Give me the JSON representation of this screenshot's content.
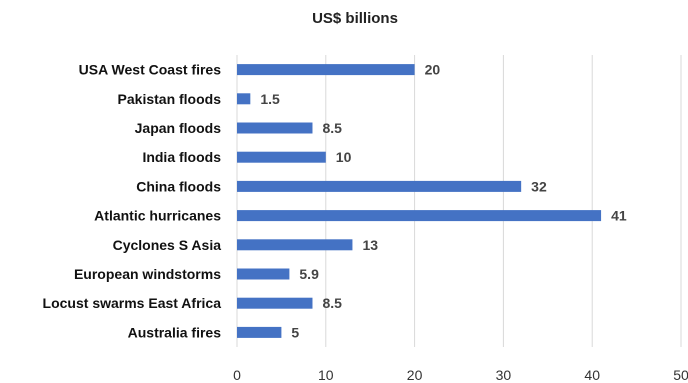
{
  "chart_data": {
    "type": "bar",
    "orientation": "horizontal",
    "title": "US$ billions",
    "xlabel": "",
    "ylabel": "",
    "categories": [
      "USA West Coast fires",
      "Pakistan floods",
      "Japan floods",
      "India floods",
      "China floods",
      "Atlantic hurricanes",
      "Cyclones S Asia",
      "European windstorms",
      "Locust swarms East Africa",
      "Australia fires"
    ],
    "values": [
      20,
      1.5,
      8.5,
      10,
      32,
      41,
      13,
      5.9,
      8.5,
      5
    ],
    "value_labels": [
      "20",
      "1.5",
      "8.5",
      "10",
      "32",
      "41",
      "13",
      "5.9",
      "8.5",
      "5"
    ],
    "xlim": [
      0,
      50
    ],
    "xticks": [
      0,
      10,
      20,
      30,
      40,
      50
    ],
    "grid": "vertical",
    "legend": "none",
    "bar_color": "#4472c4"
  }
}
